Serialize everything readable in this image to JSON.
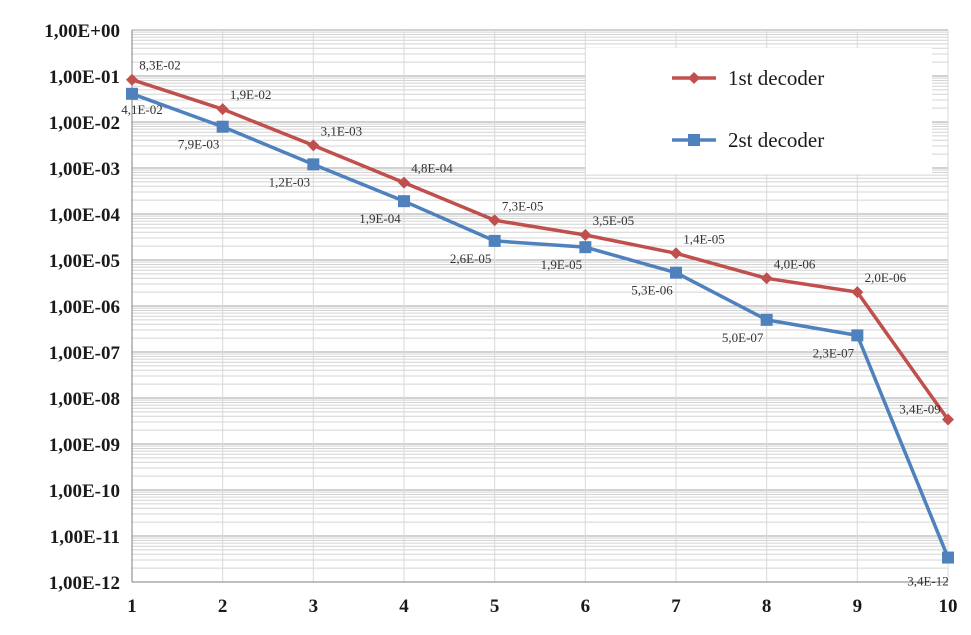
{
  "chart_data": {
    "type": "line",
    "x": [
      1,
      2,
      3,
      4,
      5,
      6,
      7,
      8,
      9,
      10
    ],
    "y_scale": "log",
    "ylim": [
      1e-12,
      1
    ],
    "xlim": [
      1,
      10
    ],
    "grid": true,
    "legend_position": "top-right",
    "y_tick_labels": [
      "1,00E+00",
      "1,00E-01",
      "1,00E-02",
      "1,00E-03",
      "1,00E-04",
      "1,00E-05",
      "1,00E-06",
      "1,00E-07",
      "1,00E-08",
      "1,00E-09",
      "1,00E-10",
      "1,00E-11",
      "1,00E-12"
    ],
    "x_tick_labels": [
      "1",
      "2",
      "3",
      "4",
      "5",
      "6",
      "7",
      "8",
      "9",
      "10"
    ],
    "series": [
      {
        "name": "1st decoder",
        "color": "#c0504d",
        "marker": "diamond",
        "values": [
          0.083,
          0.019,
          0.0031,
          0.00048,
          7.3e-05,
          3.5e-05,
          1.4e-05,
          4e-06,
          2e-06,
          3.4e-09
        ],
        "labels": [
          "8,3E-02",
          "1,9E-02",
          "3,1E-03",
          "4,8E-04",
          "7,3E-05",
          "3,5E-05",
          "1,4E-05",
          "4,0E-06",
          "2,0E-06",
          "3,4E-09"
        ]
      },
      {
        "name": "2st decoder",
        "color": "#4f81bd",
        "marker": "square",
        "values": [
          0.041,
          0.0079,
          0.0012,
          0.00019,
          2.6e-05,
          1.9e-05,
          5.3e-06,
          5e-07,
          2.3e-07,
          3.4e-12
        ],
        "labels": [
          "4,1E-02",
          "7,9E-03",
          "1,2E-03",
          "1,9E-04",
          "2,6E-05",
          "1,9E-05",
          "5,3E-06",
          "5,0E-07",
          "2,3E-07",
          "3,4E-12"
        ]
      }
    ]
  }
}
